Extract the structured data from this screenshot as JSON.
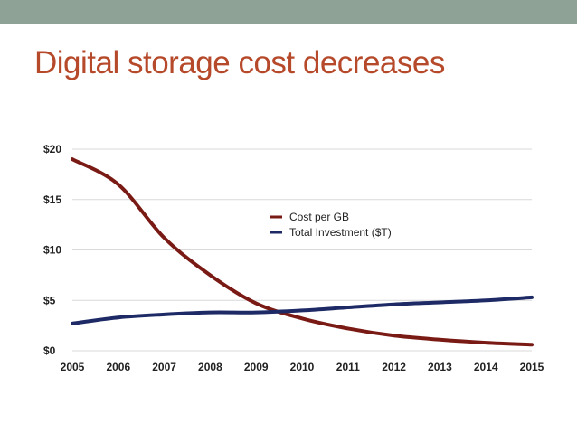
{
  "slide": {
    "title": "Digital storage cost decreases"
  },
  "colors": {
    "band": "#8fa296",
    "title": "#b5492a",
    "cost_series": "#7a1a14",
    "investment_series": "#1d2a66",
    "grid": "#d9d9d9"
  },
  "chart_data": {
    "type": "line",
    "title": "",
    "xlabel": "",
    "ylabel": "",
    "x": [
      2005,
      2006,
      2007,
      2008,
      2009,
      2010,
      2011,
      2012,
      2013,
      2014,
      2015
    ],
    "x_tick_labels": [
      "2005",
      "2006",
      "2007",
      "2008",
      "2009",
      "2010",
      "2011",
      "2012",
      "2013",
      "2014",
      "2015"
    ],
    "y_tick_labels": [
      "$0",
      "$5",
      "$10",
      "$15",
      "$20"
    ],
    "y_ticks": [
      0,
      5,
      10,
      15,
      20
    ],
    "ylim": [
      0,
      20
    ],
    "grid": true,
    "legend_position": "center-right",
    "series": [
      {
        "name": "Cost per GB",
        "color": "#7a1a14",
        "values": [
          19.0,
          16.5,
          11.2,
          7.5,
          4.7,
          3.2,
          2.2,
          1.5,
          1.1,
          0.8,
          0.6
        ]
      },
      {
        "name": "Total Investment ($T)",
        "color": "#1d2a66",
        "values": [
          2.7,
          3.3,
          3.6,
          3.8,
          3.8,
          4.0,
          4.3,
          4.6,
          4.8,
          5.0,
          5.3
        ]
      }
    ]
  }
}
